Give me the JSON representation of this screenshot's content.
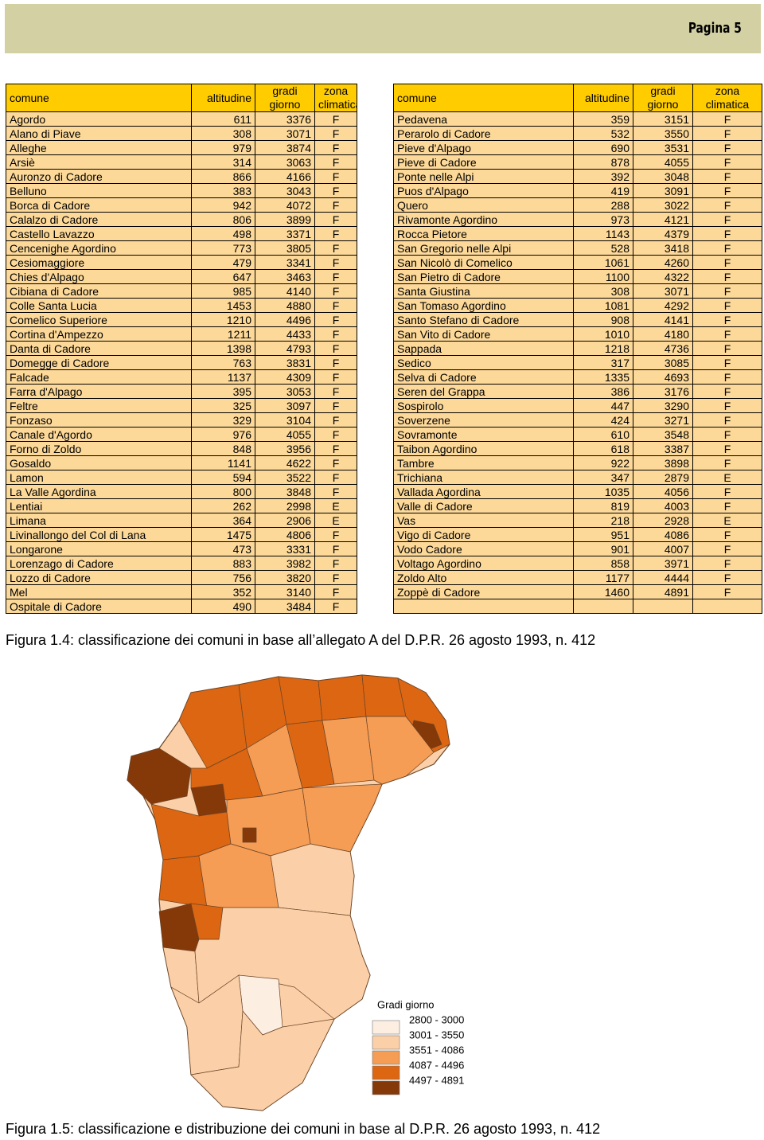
{
  "header": {
    "page": "Pagina 5"
  },
  "tables": [
    {
      "headers": [
        "comune",
        "altitudine",
        "gradi giorno",
        "zona climatica"
      ],
      "rows": [
        [
          "Agordo",
          611,
          3376,
          "F"
        ],
        [
          "Alano di Piave",
          308,
          3071,
          "F"
        ],
        [
          "Alleghe",
          979,
          3874,
          "F"
        ],
        [
          "Arsiè",
          314,
          3063,
          "F"
        ],
        [
          "Auronzo di Cadore",
          866,
          4166,
          "F"
        ],
        [
          "Belluno",
          383,
          3043,
          "F"
        ],
        [
          "Borca di Cadore",
          942,
          4072,
          "F"
        ],
        [
          "Calalzo di Cadore",
          806,
          3899,
          "F"
        ],
        [
          "Castello Lavazzo",
          498,
          3371,
          "F"
        ],
        [
          "Cencenighe Agordino",
          773,
          3805,
          "F"
        ],
        [
          "Cesiomaggiore",
          479,
          3341,
          "F"
        ],
        [
          "Chies d'Alpago",
          647,
          3463,
          "F"
        ],
        [
          "Cibiana di Cadore",
          985,
          4140,
          "F"
        ],
        [
          "Colle Santa Lucia",
          1453,
          4880,
          "F"
        ],
        [
          "Comelico Superiore",
          1210,
          4496,
          "F"
        ],
        [
          "Cortina d'Ampezzo",
          1211,
          4433,
          "F"
        ],
        [
          "Danta di Cadore",
          1398,
          4793,
          "F"
        ],
        [
          "Domegge di Cadore",
          763,
          3831,
          "F"
        ],
        [
          "Falcade",
          1137,
          4309,
          "F"
        ],
        [
          "Farra d'Alpago",
          395,
          3053,
          "F"
        ],
        [
          "Feltre",
          325,
          3097,
          "F"
        ],
        [
          "Fonzaso",
          329,
          3104,
          "F"
        ],
        [
          "Canale d'Agordo",
          976,
          4055,
          "F"
        ],
        [
          "Forno di Zoldo",
          848,
          3956,
          "F"
        ],
        [
          "Gosaldo",
          1141,
          4622,
          "F"
        ],
        [
          "Lamon",
          594,
          3522,
          "F"
        ],
        [
          "La Valle Agordina",
          800,
          3848,
          "F"
        ],
        [
          "Lentiai",
          262,
          2998,
          "E"
        ],
        [
          "Limana",
          364,
          2906,
          "E"
        ],
        [
          "Livinallongo del Col di Lana",
          1475,
          4806,
          "F"
        ],
        [
          "Longarone",
          473,
          3331,
          "F"
        ],
        [
          "Lorenzago di Cadore",
          883,
          3982,
          "F"
        ],
        [
          "Lozzo di Cadore",
          756,
          3820,
          "F"
        ],
        [
          "Mel",
          352,
          3140,
          "F"
        ],
        [
          "Ospitale di Cadore",
          490,
          3484,
          "F"
        ]
      ]
    },
    {
      "headers": [
        "comune",
        "altitudine",
        "gradi giorno",
        "zona climatica"
      ],
      "rows": [
        [
          "Pedavena",
          359,
          3151,
          "F"
        ],
        [
          "Perarolo di Cadore",
          532,
          3550,
          "F"
        ],
        [
          "Pieve d'Alpago",
          690,
          3531,
          "F"
        ],
        [
          "Pieve di Cadore",
          878,
          4055,
          "F"
        ],
        [
          "Ponte nelle Alpi",
          392,
          3048,
          "F"
        ],
        [
          "Puos d'Alpago",
          419,
          3091,
          "F"
        ],
        [
          "Quero",
          288,
          3022,
          "F"
        ],
        [
          "Rivamonte Agordino",
          973,
          4121,
          "F"
        ],
        [
          "Rocca Pietore",
          1143,
          4379,
          "F"
        ],
        [
          "San Gregorio nelle Alpi",
          528,
          3418,
          "F"
        ],
        [
          "San Nicolò di Comelico",
          1061,
          4260,
          "F"
        ],
        [
          "San Pietro di Cadore",
          1100,
          4322,
          "F"
        ],
        [
          "Santa Giustina",
          308,
          3071,
          "F"
        ],
        [
          "San Tomaso Agordino",
          1081,
          4292,
          "F"
        ],
        [
          "Santo Stefano di Cadore",
          908,
          4141,
          "F"
        ],
        [
          "San Vito di Cadore",
          1010,
          4180,
          "F"
        ],
        [
          "Sappada",
          1218,
          4736,
          "F"
        ],
        [
          "Sedico",
          317,
          3085,
          "F"
        ],
        [
          "Selva di Cadore",
          1335,
          4693,
          "F"
        ],
        [
          "Seren del Grappa",
          386,
          3176,
          "F"
        ],
        [
          "Sospirolo",
          447,
          3290,
          "F"
        ],
        [
          "Soverzene",
          424,
          3271,
          "F"
        ],
        [
          "Sovramonte",
          610,
          3548,
          "F"
        ],
        [
          "Taibon Agordino",
          618,
          3387,
          "F"
        ],
        [
          "Tambre",
          922,
          3898,
          "F"
        ],
        [
          "Trichiana",
          347,
          2879,
          "E"
        ],
        [
          "Vallada Agordina",
          1035,
          4056,
          "F"
        ],
        [
          "Valle di Cadore",
          819,
          4003,
          "F"
        ],
        [
          "Vas",
          218,
          2928,
          "E"
        ],
        [
          "Vigo di Cadore",
          951,
          4086,
          "F"
        ],
        [
          "Vodo Cadore",
          901,
          4007,
          "F"
        ],
        [
          "Voltago Agordino",
          858,
          3971,
          "F"
        ],
        [
          "Zoldo Alto",
          1177,
          4444,
          "F"
        ],
        [
          "Zoppè di Cadore",
          1460,
          4891,
          "F"
        ]
      ]
    }
  ],
  "caption1": "Figura 1.4: classificazione dei comuni in base all’allegato A del D.P.R. 26 agosto 1993, n. 412",
  "legend": {
    "title": "Gradi giorno",
    "items": [
      {
        "label": "2800 - 3000",
        "color": "#fdeee2"
      },
      {
        "label": "3001 - 3550",
        "color": "#fbd0a8"
      },
      {
        "label": "3551 - 4086",
        "color": "#f59c55"
      },
      {
        "label": "4087 - 4496",
        "color": "#dc6612"
      },
      {
        "label": "4497 - 4891",
        "color": "#853808"
      }
    ]
  },
  "caption2": "Figura 1.5: classificazione e distribuzione dei comuni in base al D.P.R. 26 agosto 1993, n. 412"
}
